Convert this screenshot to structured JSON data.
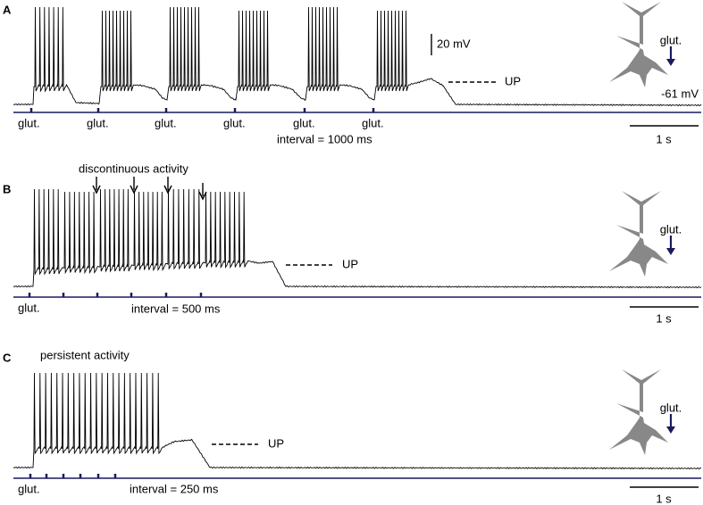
{
  "panels": [
    {
      "label": "A",
      "scale_bar_voltage": "20 mV",
      "neuron_label": "glut.",
      "up_label": "UP",
      "resting_label": "-61 mV",
      "stimulus_labels": [
        "glut.",
        "glut.",
        "glut.",
        "glut.",
        "glut.",
        "glut."
      ],
      "interval_label": "interval = 1000 ms",
      "time_scale": "1 s"
    },
    {
      "label": "B",
      "annotation": "discontinuous activity",
      "neuron_label": "glut.",
      "up_label": "UP",
      "stimulus_labels": [
        "glut."
      ],
      "interval_label": "interval = 500 ms",
      "time_scale": "1 s"
    },
    {
      "label": "C",
      "annotation": "persistent activity",
      "neuron_label": "glut.",
      "up_label": "UP",
      "stimulus_labels": [
        "glut."
      ],
      "interval_label": "interval = 250 ms",
      "time_scale": "1 s"
    }
  ]
}
